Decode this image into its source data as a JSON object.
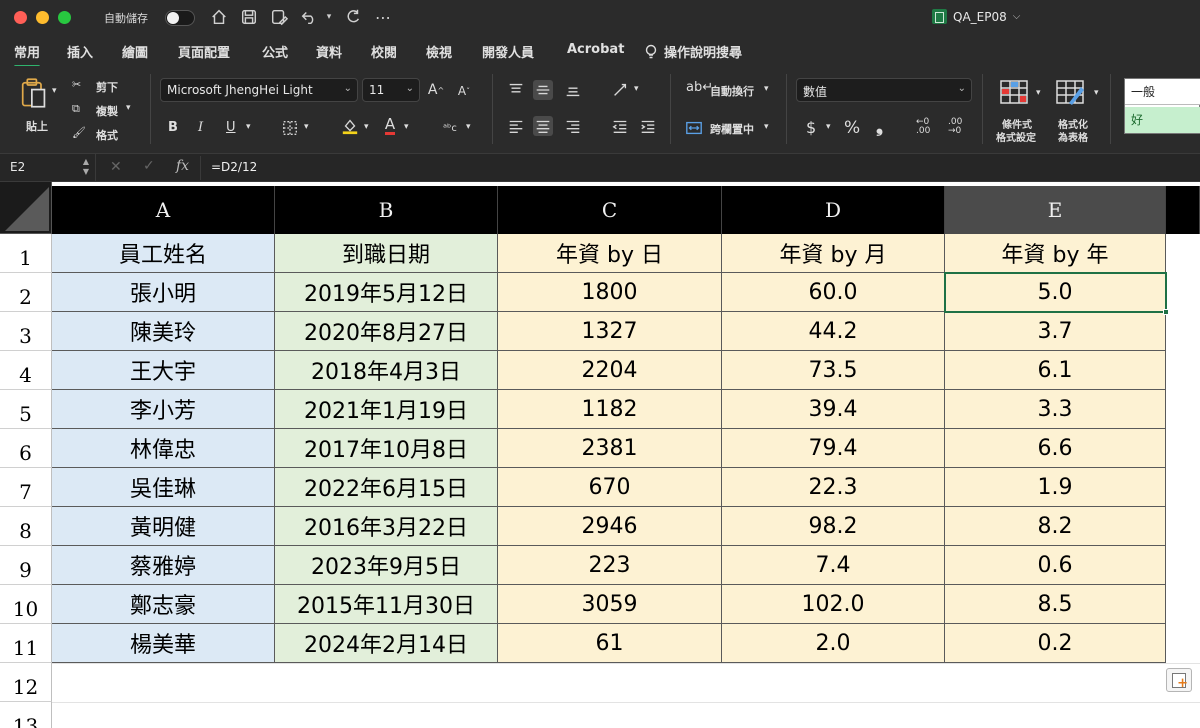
{
  "titlebar": {
    "autosave_label": "自動儲存",
    "autosave_state": "off",
    "document_title": "QA_EP08",
    "title_chevron": "⌵",
    "more_glyph": "⋯"
  },
  "menu_tabs": [
    "常用",
    "插入",
    "繪圖",
    "頁面配置",
    "公式",
    "資料",
    "校閱",
    "檢視",
    "開發人員",
    "Acrobat"
  ],
  "active_tab": "常用",
  "tell_me": "操作說明搜尋",
  "ribbon": {
    "paste": "貼上",
    "cut": "剪下",
    "copy": "複製",
    "format_painter": "格式",
    "font_name": "Microsoft JhengHei Light",
    "font_size": "11",
    "bold": "B",
    "italic": "I",
    "underline": "U",
    "wrap_text": "自動換行",
    "merge_center": "跨欄置中",
    "number_format": "數值",
    "currency": "$",
    "percent": "%",
    "comma": "❟",
    "cond_format_line1": "條件式",
    "cond_format_line2": "格式設定",
    "format_table_line1": "格式化",
    "format_table_line2": "為表格",
    "style_normal": "一般",
    "style_good": "好",
    "accent_color": "#2fb36d"
  },
  "formula_bar": {
    "name_box": "E2",
    "formula": "=D2/12"
  },
  "columns": [
    "A",
    "B",
    "C",
    "D",
    "E"
  ],
  "selected_column": "E",
  "rows": [
    "1",
    "2",
    "3",
    "4",
    "5",
    "6",
    "7",
    "8",
    "9",
    "10",
    "11",
    "12",
    "13"
  ],
  "table": {
    "headers": [
      "員工姓名",
      "到職日期",
      "年資 by 日",
      "年資 by 月",
      "年資 by 年"
    ],
    "data": [
      [
        "張小明",
        "2019年5月12日",
        "1800",
        "60.0",
        "5.0"
      ],
      [
        "陳美玲",
        "2020年8月27日",
        "1327",
        "44.2",
        "3.7"
      ],
      [
        "王大宇",
        "2018年4月3日",
        "2204",
        "73.5",
        "6.1"
      ],
      [
        "李小芳",
        "2021年1月19日",
        "1182",
        "39.4",
        "3.3"
      ],
      [
        "林偉忠",
        "2017年10月8日",
        "2381",
        "79.4",
        "6.6"
      ],
      [
        "吳佳琳",
        "2022年6月15日",
        "670",
        "22.3",
        "1.9"
      ],
      [
        "黃明健",
        "2016年3月22日",
        "2946",
        "98.2",
        "8.2"
      ],
      [
        "蔡雅婷",
        "2023年9月5日",
        "223",
        "7.4",
        "0.6"
      ],
      [
        "鄭志豪",
        "2015年11月30日",
        "3059",
        "102.0",
        "8.5"
      ],
      [
        "楊美華",
        "2024年2月14日",
        "61",
        "2.0",
        "0.2"
      ]
    ]
  },
  "selected_cell": "E2",
  "colors": {
    "col_a_fill": "#dce9f5",
    "col_b_fill": "#e2efda",
    "col_cde_fill": "#fdf2d3",
    "selection": "#1e7145"
  }
}
